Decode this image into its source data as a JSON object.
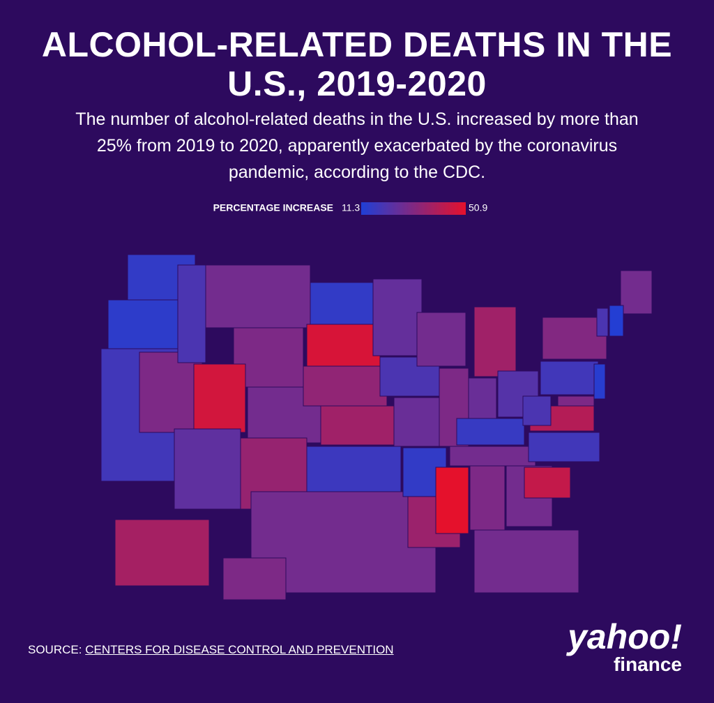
{
  "chart_data": {
    "type": "choropleth",
    "title_lines": [
      "ALCOHOL-RELATED DEATHS IN THE",
      "U.S., 2019-2020"
    ],
    "subtitle_lines": [
      "The number of alcohol-related deaths in the U.S. increased by more than",
      "25% from 2019 to 2020, apparently exacerbated by the coronavirus",
      "pandemic, according to the CDC."
    ],
    "legend": {
      "label": "PERCENTAGE INCREASE",
      "min": 11.3,
      "max": 50.9,
      "colors": [
        "#1f3fd6",
        "#e5112c"
      ]
    },
    "values": [
      15,
      14,
      18,
      30,
      20,
      28,
      30,
      47,
      28,
      24,
      35,
      15,
      48,
      34,
      37,
      17,
      28,
      25,
      20,
      26,
      15,
      36,
      28,
      30,
      37,
      26,
      22,
      16,
      28,
      50.9,
      30,
      28,
      28,
      44,
      18,
      41,
      20,
      18,
      31,
      28,
      20,
      12,
      13,
      30,
      38,
      30
    ],
    "source": {
      "prefix": "SOURCE:",
      "link": "CENTERS FOR DISEASE CONTROL AND PREVENTION"
    },
    "logo": {
      "brand": "yahoo!",
      "product": "finance"
    }
  }
}
